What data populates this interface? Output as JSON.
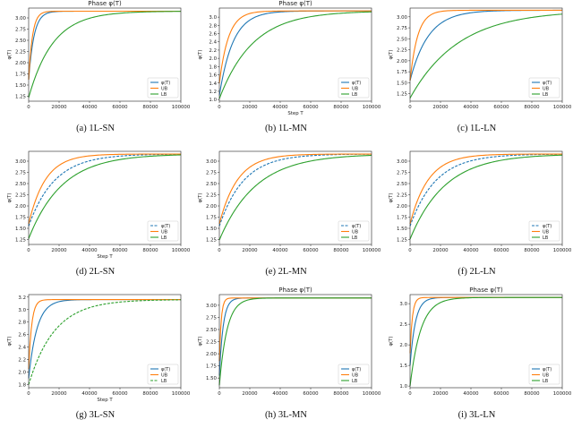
{
  "figure": {
    "panels": [
      {
        "caption": "(a) 1L-SN",
        "chart_data": {
          "type": "line",
          "title": "Phase φ(T)",
          "xlabel": "",
          "ylabel": "φ(T)",
          "xlim": [
            0,
            100000
          ],
          "ylim": [
            1.14,
            3.22
          ],
          "xticks": [
            0,
            20000,
            40000,
            60000,
            80000,
            100000
          ],
          "yticks": [
            1.25,
            1.5,
            1.75,
            2.0,
            2.25,
            2.5,
            2.75,
            3.0
          ],
          "ytick_labels": [
            "1.25",
            "1.50",
            "1.75",
            "2.00",
            "2.25",
            "2.50",
            "2.75",
            "3.00"
          ],
          "legend": {
            "placement": "lower-right"
          },
          "series": [
            {
              "name": "φ(T)",
              "color": "#1f77b4",
              "start": 1.62,
              "end": 3.15,
              "tau": 3500,
              "dashed": false
            },
            {
              "name": "UB",
              "color": "#ff7f0e",
              "start": 1.62,
              "end": 3.15,
              "tau": 2500,
              "dashed": false
            },
            {
              "name": "LB",
              "color": "#2ca02c",
              "start": 1.22,
              "end": 3.15,
              "tau": 16000,
              "dashed": false
            }
          ]
        }
      },
      {
        "caption": "(b) 1L-MN",
        "chart_data": {
          "type": "line",
          "title": "Phase φ(T)",
          "xlabel": "Step T",
          "ylabel": "φ(T)",
          "xlim": [
            0,
            100000
          ],
          "ylim": [
            0.96,
            3.22
          ],
          "xticks": [
            0,
            20000,
            40000,
            60000,
            80000,
            100000
          ],
          "yticks": [
            1.0,
            1.2,
            1.4,
            1.6,
            1.8,
            2.0,
            2.2,
            2.4,
            2.6,
            2.8,
            3.0
          ],
          "ytick_labels": [
            "1.0",
            "1.2",
            "1.4",
            "1.6",
            "1.8",
            "2.0",
            "2.2",
            "2.4",
            "2.6",
            "2.8",
            "3.0"
          ],
          "legend": {
            "placement": "lower-right"
          },
          "series": [
            {
              "name": "φ(T)",
              "color": "#1f77b4",
              "start": 1.1,
              "end": 3.15,
              "tau": 9000,
              "dashed": false
            },
            {
              "name": "UB",
              "color": "#ff7f0e",
              "start": 1.4,
              "end": 3.15,
              "tau": 6000,
              "dashed": false
            },
            {
              "name": "LB",
              "color": "#2ca02c",
              "start": 1.02,
              "end": 3.15,
              "tau": 22000,
              "dashed": false
            }
          ]
        }
      },
      {
        "caption": "(c) 1L-LN",
        "chart_data": {
          "type": "line",
          "title": "",
          "xlabel": "",
          "ylabel": "φ(T)",
          "xlim": [
            0,
            100000
          ],
          "ylim": [
            1.08,
            3.2
          ],
          "xticks": [
            0,
            20000,
            40000,
            60000,
            80000,
            100000
          ],
          "yticks": [
            1.25,
            1.5,
            1.75,
            2.0,
            2.25,
            2.5,
            2.75,
            3.0
          ],
          "ytick_labels": [
            "1.25",
            "1.50",
            "1.75",
            "2.00",
            "2.25",
            "2.50",
            "2.75",
            "3.00"
          ],
          "legend": {
            "placement": "lower-right"
          },
          "series": [
            {
              "name": "φ(T)",
              "color": "#1f77b4",
              "start": 1.55,
              "end": 3.15,
              "tau": 12000,
              "dashed": false
            },
            {
              "name": "UB",
              "color": "#ff7f0e",
              "start": 1.55,
              "end": 3.15,
              "tau": 5000,
              "dashed": false
            },
            {
              "name": "LB",
              "color": "#2ca02c",
              "start": 1.15,
              "end": 3.15,
              "tau": 32000,
              "dashed": false
            }
          ]
        }
      },
      {
        "caption": "(d) 2L-SN",
        "chart_data": {
          "type": "line",
          "title": "",
          "xlabel": "Step T",
          "ylabel": "φ(T)",
          "xlim": [
            0,
            100000
          ],
          "ylim": [
            1.14,
            3.22
          ],
          "xticks": [
            0,
            20000,
            40000,
            60000,
            80000,
            100000
          ],
          "yticks": [
            1.25,
            1.5,
            1.75,
            2.0,
            2.25,
            2.5,
            2.75,
            3.0
          ],
          "ytick_labels": [
            "1.25",
            "1.50",
            "1.75",
            "2.00",
            "2.25",
            "2.50",
            "2.75",
            "3.00"
          ],
          "legend": {
            "placement": "lower-right"
          },
          "series": [
            {
              "name": "φ(T)",
              "color": "#1f77b4",
              "start": 1.55,
              "end": 3.16,
              "tau": 17000,
              "dashed": true
            },
            {
              "name": "UB",
              "color": "#ff7f0e",
              "start": 1.6,
              "end": 3.16,
              "tau": 11000,
              "dashed": false
            },
            {
              "name": "LB",
              "color": "#2ca02c",
              "start": 1.27,
              "end": 3.16,
              "tau": 22000,
              "dashed": false
            }
          ]
        }
      },
      {
        "caption": "(e) 2L-MN",
        "chart_data": {
          "type": "line",
          "title": "",
          "xlabel": "",
          "ylabel": "φ(T)",
          "xlim": [
            0,
            100000
          ],
          "ylim": [
            1.14,
            3.22
          ],
          "xticks": [
            0,
            20000,
            40000,
            60000,
            80000,
            100000
          ],
          "yticks": [
            1.25,
            1.5,
            1.75,
            2.0,
            2.25,
            2.5,
            2.75,
            3.0
          ],
          "ytick_labels": [
            "1.25",
            "1.50",
            "1.75",
            "2.00",
            "2.25",
            "2.50",
            "2.75",
            "3.00"
          ],
          "legend": {
            "placement": "lower-right"
          },
          "series": [
            {
              "name": "φ(T)",
              "color": "#1f77b4",
              "start": 1.55,
              "end": 3.16,
              "tau": 16000,
              "dashed": true
            },
            {
              "name": "UB",
              "color": "#ff7f0e",
              "start": 1.6,
              "end": 3.16,
              "tau": 12000,
              "dashed": false
            },
            {
              "name": "LB",
              "color": "#2ca02c",
              "start": 1.24,
              "end": 3.16,
              "tau": 24000,
              "dashed": false
            }
          ]
        }
      },
      {
        "caption": "(f) 2L-LN",
        "chart_data": {
          "type": "line",
          "title": "",
          "xlabel": "",
          "ylabel": "φ(T)",
          "xlim": [
            0,
            100000
          ],
          "ylim": [
            1.14,
            3.22
          ],
          "xticks": [
            0,
            20000,
            40000,
            60000,
            80000,
            100000
          ],
          "yticks": [
            1.25,
            1.5,
            1.75,
            2.0,
            2.25,
            2.5,
            2.75,
            3.0
          ],
          "ytick_labels": [
            "1.25",
            "1.50",
            "1.75",
            "2.00",
            "2.25",
            "2.50",
            "2.75",
            "3.00"
          ],
          "legend": {
            "placement": "lower-right"
          },
          "series": [
            {
              "name": "φ(T)",
              "color": "#1f77b4",
              "start": 1.55,
              "end": 3.16,
              "tau": 17000,
              "dashed": true
            },
            {
              "name": "UB",
              "color": "#ff7f0e",
              "start": 1.6,
              "end": 3.16,
              "tau": 12000,
              "dashed": false
            },
            {
              "name": "LB",
              "color": "#2ca02c",
              "start": 1.26,
              "end": 3.16,
              "tau": 23000,
              "dashed": false
            }
          ]
        }
      },
      {
        "caption": "(g) 3L-SN",
        "chart_data": {
          "type": "line",
          "title": "",
          "xlabel": "Step T",
          "ylabel": "φ(T)",
          "xlim": [
            0,
            100000
          ],
          "ylim": [
            1.75,
            3.24
          ],
          "xticks": [
            0,
            20000,
            40000,
            60000,
            80000,
            100000
          ],
          "yticks": [
            1.8,
            2.0,
            2.2,
            2.4,
            2.6,
            2.8,
            3.0,
            3.2
          ],
          "ytick_labels": [
            "1.8",
            "2.0",
            "2.2",
            "2.4",
            "2.6",
            "2.8",
            "3.0",
            "3.2"
          ],
          "legend": {
            "placement": "lower-right"
          },
          "series": [
            {
              "name": "φ(T)",
              "color": "#1f77b4",
              "start": 1.9,
              "end": 3.16,
              "tau": 5500,
              "dashed": false
            },
            {
              "name": "UB",
              "color": "#ff7f0e",
              "start": 2.05,
              "end": 3.16,
              "tau": 2000,
              "dashed": false
            },
            {
              "name": "LB",
              "color": "#2ca02c",
              "start": 1.8,
              "end": 3.16,
              "tau": 17000,
              "dashed": true
            }
          ]
        }
      },
      {
        "caption": "(h) 3L-MN",
        "chart_data": {
          "type": "line",
          "title": "Phase φ(T)",
          "xlabel": "",
          "ylabel": "φ(T)",
          "xlim": [
            0,
            100000
          ],
          "ylim": [
            1.3,
            3.22
          ],
          "xticks": [
            0,
            20000,
            40000,
            60000,
            80000,
            100000
          ],
          "yticks": [
            1.5,
            1.75,
            2.0,
            2.25,
            2.5,
            2.75,
            3.0
          ],
          "ytick_labels": [
            "1.50",
            "1.75",
            "2.00",
            "2.25",
            "2.50",
            "2.75",
            "3.00"
          ],
          "legend": {
            "placement": "lower-right"
          },
          "series": [
            {
              "name": "φ(T)",
              "color": "#1f77b4",
              "start": 1.55,
              "end": 3.15,
              "tau": 2500,
              "dashed": false
            },
            {
              "name": "UB",
              "color": "#ff7f0e",
              "start": 1.85,
              "end": 3.15,
              "tau": 1200,
              "dashed": false
            },
            {
              "name": "LB",
              "color": "#2ca02c",
              "start": 1.35,
              "end": 3.15,
              "tau": 5000,
              "dashed": false
            }
          ]
        }
      },
      {
        "caption": "(i) 3L-LN",
        "chart_data": {
          "type": "line",
          "title": "Phase φ(T)",
          "xlabel": "",
          "ylabel": "φ(T)",
          "xlim": [
            0,
            100000
          ],
          "ylim": [
            0.96,
            3.22
          ],
          "xticks": [
            0,
            20000,
            40000,
            60000,
            80000,
            100000
          ],
          "yticks": [
            1.0,
            1.5,
            2.0,
            2.5,
            3.0
          ],
          "ytick_labels": [
            "1.0",
            "1.5",
            "2.0",
            "2.5",
            "3.0"
          ],
          "legend": {
            "placement": "lower-right"
          },
          "series": [
            {
              "name": "φ(T)",
              "color": "#1f77b4",
              "start": 1.5,
              "end": 3.15,
              "tau": 3500,
              "dashed": false
            },
            {
              "name": "UB",
              "color": "#ff7f0e",
              "start": 1.8,
              "end": 3.15,
              "tau": 1500,
              "dashed": false
            },
            {
              "name": "LB",
              "color": "#2ca02c",
              "start": 1.0,
              "end": 3.15,
              "tau": 7000,
              "dashed": false
            }
          ]
        }
      }
    ]
  }
}
